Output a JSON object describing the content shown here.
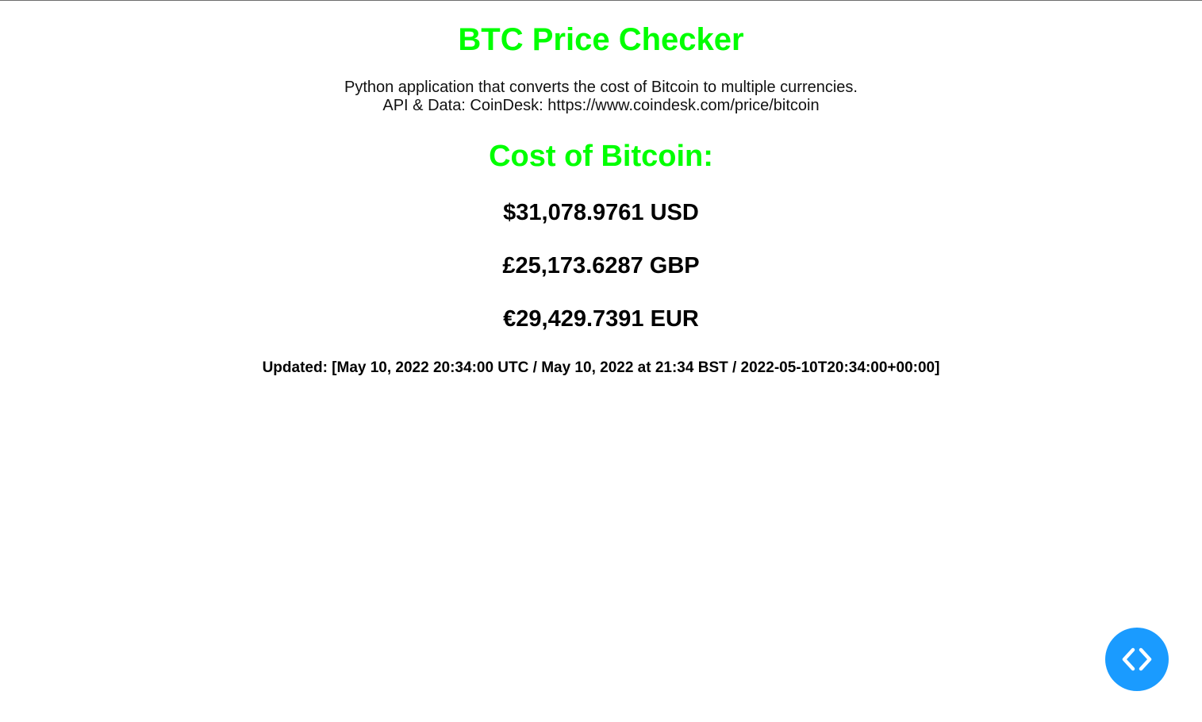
{
  "header": {
    "title": "BTC Price Checker",
    "description_line1": "Python application that converts the cost of Bitcoin to multiple currencies.",
    "description_line2": "API & Data: CoinDesk: https://www.coindesk.com/price/bitcoin"
  },
  "main": {
    "cost_heading": "Cost of Bitcoin:",
    "prices": {
      "usd": "$31,078.9761 USD",
      "gbp": "£25,173.6287 GBP",
      "eur": "€29,429.7391 EUR"
    },
    "updated": "Updated: [May 10, 2022 20:34:00 UTC / May 10, 2022 at 21:34 BST / 2022-05-10T20:34:00+00:00]"
  },
  "floating_button": {
    "icon": "code-brackets-icon",
    "color": "#1a9bff"
  },
  "colors": {
    "accent": "#00ff00",
    "text": "#000000",
    "background": "#ffffff"
  }
}
